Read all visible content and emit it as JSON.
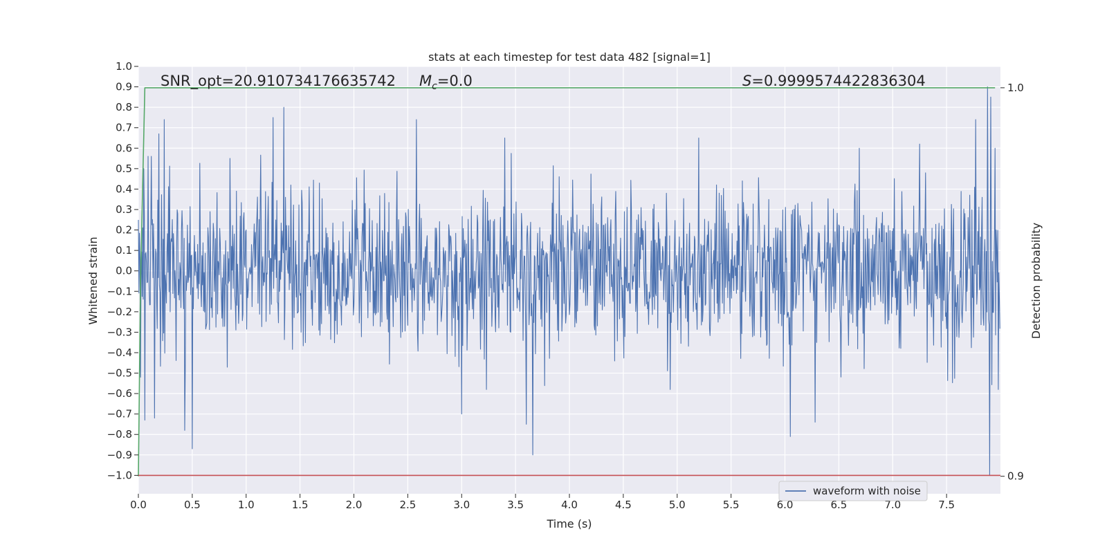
{
  "chart_data": {
    "type": "line",
    "title": "stats at each timestep for test data 482 [signal=1]",
    "xlabel": "Time (s)",
    "ylabel": "Whitened strain",
    "y2label": "Detection probability",
    "xlim": [
      0.0,
      8.0
    ],
    "ylim": [
      -1.09,
      1.0
    ],
    "y2lim": [
      0.8955,
      1.0055
    ],
    "x_ticks": [
      0.0,
      0.5,
      1.0,
      1.5,
      2.0,
      2.5,
      3.0,
      3.5,
      4.0,
      4.5,
      5.0,
      5.5,
      6.0,
      6.5,
      7.0,
      7.5
    ],
    "x_tick_labels": [
      "0.0",
      "0.5",
      "1.0",
      "1.5",
      "2.0",
      "2.5",
      "3.0",
      "3.5",
      "4.0",
      "4.5",
      "5.0",
      "5.5",
      "6.0",
      "6.5",
      "7.0",
      "7.5"
    ],
    "y_ticks": [
      1.0,
      0.9,
      0.8,
      0.7,
      0.6,
      0.5,
      0.4,
      0.3,
      0.2,
      0.1,
      0.0,
      -0.1,
      -0.2,
      -0.3,
      -0.4,
      -0.5,
      -0.6,
      -0.7,
      -0.8,
      -0.9,
      -1.0
    ],
    "y_tick_labels": [
      "1.0",
      "0.9",
      "0.8",
      "0.7",
      "0.6",
      "0.5",
      "0.4",
      "0.3",
      "0.2",
      "0.1",
      "0.0",
      "−0.1",
      "−0.2",
      "−0.3",
      "−0.4",
      "−0.5",
      "−0.6",
      "−0.7",
      "−0.8",
      "−0.9",
      "−1.0"
    ],
    "y2_ticks": [
      1.0,
      0.9
    ],
    "y2_tick_labels": [
      "1.0",
      "0.9"
    ],
    "grid": true,
    "legend": {
      "placement": "lower-right",
      "entries": [
        "waveform with noise"
      ]
    },
    "annotations": {
      "snr": "SNR_opt=20.910734176635742",
      "mc_symbol": "M",
      "mc_sub": "c",
      "mc_value": "=0.0",
      "s_symbol": "S",
      "s_value": "=0.9999574422836304"
    },
    "series": [
      {
        "name": "waveform with noise",
        "axis": "left",
        "color": "#4c72b0",
        "noise": {
          "std": 0.19,
          "samples": 1600,
          "seed": 482
        },
        "peaks": [
          [
            0.02,
            -0.52
          ],
          [
            0.05,
            0.5
          ],
          [
            0.06,
            -0.73
          ],
          [
            0.09,
            0.56
          ],
          [
            0.12,
            0.56
          ],
          [
            0.15,
            -0.72
          ],
          [
            0.19,
            0.67
          ],
          [
            0.24,
            0.74
          ],
          [
            0.43,
            -0.78
          ],
          [
            0.5,
            -0.87
          ],
          [
            0.85,
            0.55
          ],
          [
            1.0,
            0.2
          ],
          [
            1.25,
            0.75
          ],
          [
            1.35,
            0.8
          ],
          [
            2.58,
            0.74
          ],
          [
            3.0,
            -0.7
          ],
          [
            3.4,
            0.65
          ],
          [
            3.6,
            -0.75
          ],
          [
            3.66,
            -0.9
          ],
          [
            5.2,
            0.65
          ],
          [
            6.05,
            -0.81
          ],
          [
            6.28,
            -0.74
          ],
          [
            6.69,
            0.6
          ],
          [
            7.25,
            0.62
          ],
          [
            7.77,
            0.74
          ],
          [
            7.88,
            0.9
          ],
          [
            7.9,
            -1.0
          ],
          [
            7.91,
            0.85
          ],
          [
            7.95,
            0.6
          ],
          [
            7.98,
            -0.58
          ]
        ]
      },
      {
        "name": "",
        "axis": "right",
        "color": "#55a868",
        "x": [
          0.0,
          0.02,
          0.06,
          7.95
        ],
        "y": [
          0.9,
          0.95,
          1.0,
          1.0
        ]
      },
      {
        "name": "",
        "axis": "left",
        "color": "#c44e52",
        "x": [
          0.0,
          8.0
        ],
        "y": [
          -1.0,
          -1.0
        ]
      }
    ]
  }
}
